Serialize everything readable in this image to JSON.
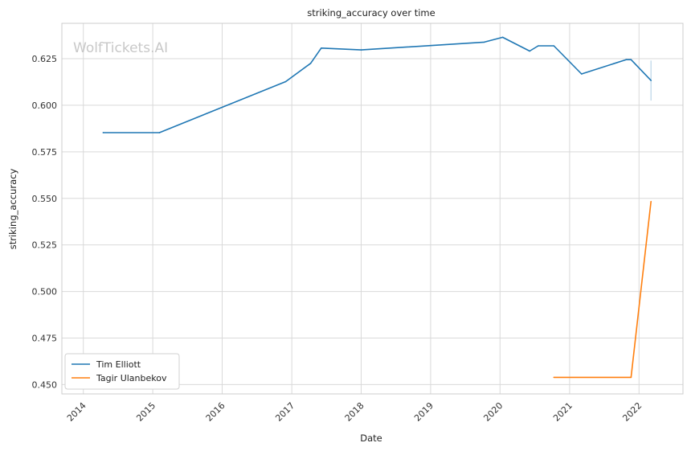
{
  "watermark": "WolfTickets.AI",
  "chart_data": {
    "type": "line",
    "title": "striking_accuracy over time",
    "xlabel": "Date",
    "ylabel": "striking_accuracy",
    "xlim": [
      "2013-09-10",
      "2022-08-20"
    ],
    "ylim": [
      0.445,
      0.644
    ],
    "x_ticks": [
      "2014",
      "2015",
      "2016",
      "2017",
      "2018",
      "2019",
      "2020",
      "2021",
      "2022"
    ],
    "y_ticks": [
      "0.450",
      "0.475",
      "0.500",
      "0.525",
      "0.550",
      "0.575",
      "0.600",
      "0.625"
    ],
    "grid": true,
    "legend_position": "lower-left",
    "series": [
      {
        "name": "Tim Elliott",
        "color": "#1f77b4",
        "points": [
          [
            "2014-04-15",
            0.5853
          ],
          [
            "2015-02-05",
            0.5853
          ],
          [
            "2016-11-30",
            0.6127
          ],
          [
            "2017-04-10",
            0.6225
          ],
          [
            "2017-06-05",
            0.6307
          ],
          [
            "2018-01-01",
            0.6297
          ],
          [
            "2019-10-10",
            0.6339
          ],
          [
            "2020-01-15",
            0.6365
          ],
          [
            "2020-06-05",
            0.6291
          ],
          [
            "2020-07-20",
            0.6319
          ],
          [
            "2020-10-10",
            0.6319
          ],
          [
            "2021-03-05",
            0.6168
          ],
          [
            "2021-10-25",
            0.6245
          ],
          [
            "2021-11-20",
            0.6245
          ],
          [
            "2022-03-05",
            0.6133
          ]
        ],
        "band": {
          "x": "2022-03-05",
          "low": 0.6025,
          "high": 0.624
        }
      },
      {
        "name": "Tagir Ulanbekov",
        "color": "#ff7f0e",
        "points": [
          [
            "2020-10-10",
            0.4539
          ],
          [
            "2021-11-20",
            0.4539
          ],
          [
            "2022-03-05",
            0.5483
          ]
        ]
      }
    ]
  }
}
